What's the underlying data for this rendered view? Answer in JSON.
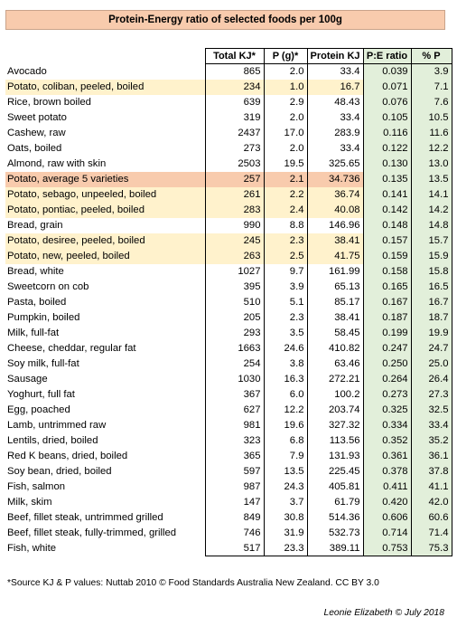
{
  "title": "Protein-Energy ratio of selected foods per 100g",
  "columns": [
    "Total KJ*",
    "P (g)*",
    "Protein KJ",
    "P:E ratio",
    "% P"
  ],
  "rows": [
    {
      "name": "Avocado",
      "kj": "865",
      "p": "2.0",
      "pkj": "33.4",
      "ratio": "0.039",
      "pct": "3.9",
      "hl": ""
    },
    {
      "name": "Potato, coliban, peeled, boiled",
      "kj": "234",
      "p": "1.0",
      "pkj": "16.7",
      "ratio": "0.071",
      "pct": "7.1",
      "hl": "light"
    },
    {
      "name": "Rice, brown boiled",
      "kj": "639",
      "p": "2.9",
      "pkj": "48.43",
      "ratio": "0.076",
      "pct": "7.6",
      "hl": ""
    },
    {
      "name": "Sweet potato",
      "kj": "319",
      "p": "2.0",
      "pkj": "33.4",
      "ratio": "0.105",
      "pct": "10.5",
      "hl": ""
    },
    {
      "name": "Cashew, raw",
      "kj": "2437",
      "p": "17.0",
      "pkj": "283.9",
      "ratio": "0.116",
      "pct": "11.6",
      "hl": ""
    },
    {
      "name": "Oats, boiled",
      "kj": "273",
      "p": "2.0",
      "pkj": "33.4",
      "ratio": "0.122",
      "pct": "12.2",
      "hl": ""
    },
    {
      "name": "Almond, raw with skin",
      "kj": "2503",
      "p": "19.5",
      "pkj": "325.65",
      "ratio": "0.130",
      "pct": "13.0",
      "hl": ""
    },
    {
      "name": "Potato, average 5 varieties",
      "kj": "257",
      "p": "2.1",
      "pkj": "34.736",
      "ratio": "0.135",
      "pct": "13.5",
      "hl": "avg"
    },
    {
      "name": "Potato, sebago, unpeeled, boiled",
      "kj": "261",
      "p": "2.2",
      "pkj": "36.74",
      "ratio": "0.141",
      "pct": "14.1",
      "hl": "light"
    },
    {
      "name": "Potato, pontiac, peeled, boiled",
      "kj": "283",
      "p": "2.4",
      "pkj": "40.08",
      "ratio": "0.142",
      "pct": "14.2",
      "hl": "light"
    },
    {
      "name": "Bread, grain",
      "kj": "990",
      "p": "8.8",
      "pkj": "146.96",
      "ratio": "0.148",
      "pct": "14.8",
      "hl": ""
    },
    {
      "name": "Potato, desiree, peeled, boiled",
      "kj": "245",
      "p": "2.3",
      "pkj": "38.41",
      "ratio": "0.157",
      "pct": "15.7",
      "hl": "light"
    },
    {
      "name": "Potato, new, peeled, boiled",
      "kj": "263",
      "p": "2.5",
      "pkj": "41.75",
      "ratio": "0.159",
      "pct": "15.9",
      "hl": "light"
    },
    {
      "name": "Bread, white",
      "kj": "1027",
      "p": "9.7",
      "pkj": "161.99",
      "ratio": "0.158",
      "pct": "15.8",
      "hl": ""
    },
    {
      "name": "Sweetcorn on cob",
      "kj": "395",
      "p": "3.9",
      "pkj": "65.13",
      "ratio": "0.165",
      "pct": "16.5",
      "hl": ""
    },
    {
      "name": "Pasta, boiled",
      "kj": "510",
      "p": "5.1",
      "pkj": "85.17",
      "ratio": "0.167",
      "pct": "16.7",
      "hl": ""
    },
    {
      "name": "Pumpkin, boiled",
      "kj": "205",
      "p": "2.3",
      "pkj": "38.41",
      "ratio": "0.187",
      "pct": "18.7",
      "hl": ""
    },
    {
      "name": "Milk, full-fat",
      "kj": "293",
      "p": "3.5",
      "pkj": "58.45",
      "ratio": "0.199",
      "pct": "19.9",
      "hl": ""
    },
    {
      "name": "Cheese, cheddar, regular fat",
      "kj": "1663",
      "p": "24.6",
      "pkj": "410.82",
      "ratio": "0.247",
      "pct": "24.7",
      "hl": ""
    },
    {
      "name": "Soy milk, full-fat",
      "kj": "254",
      "p": "3.8",
      "pkj": "63.46",
      "ratio": "0.250",
      "pct": "25.0",
      "hl": ""
    },
    {
      "name": "Sausage",
      "kj": "1030",
      "p": "16.3",
      "pkj": "272.21",
      "ratio": "0.264",
      "pct": "26.4",
      "hl": ""
    },
    {
      "name": "Yoghurt, full fat",
      "kj": "367",
      "p": "6.0",
      "pkj": "100.2",
      "ratio": "0.273",
      "pct": "27.3",
      "hl": ""
    },
    {
      "name": "Egg, poached",
      "kj": "627",
      "p": "12.2",
      "pkj": "203.74",
      "ratio": "0.325",
      "pct": "32.5",
      "hl": ""
    },
    {
      "name": "Lamb, untrimmed raw",
      "kj": "981",
      "p": "19.6",
      "pkj": "327.32",
      "ratio": "0.334",
      "pct": "33.4",
      "hl": ""
    },
    {
      "name": "Lentils, dried, boiled",
      "kj": "323",
      "p": "6.8",
      "pkj": "113.56",
      "ratio": "0.352",
      "pct": "35.2",
      "hl": ""
    },
    {
      "name": "Red K beans, dried, boiled",
      "kj": "365",
      "p": "7.9",
      "pkj": "131.93",
      "ratio": "0.361",
      "pct": "36.1",
      "hl": ""
    },
    {
      "name": "Soy bean, dried, boiled",
      "kj": "597",
      "p": "13.5",
      "pkj": "225.45",
      "ratio": "0.378",
      "pct": "37.8",
      "hl": ""
    },
    {
      "name": "Fish, salmon",
      "kj": "987",
      "p": "24.3",
      "pkj": "405.81",
      "ratio": "0.411",
      "pct": "41.1",
      "hl": ""
    },
    {
      "name": "Milk, skim",
      "kj": "147",
      "p": "3.7",
      "pkj": "61.79",
      "ratio": "0.420",
      "pct": "42.0",
      "hl": ""
    },
    {
      "name": "Beef, fillet steak, untrimmed grilled",
      "kj": "849",
      "p": "30.8",
      "pkj": "514.36",
      "ratio": "0.606",
      "pct": "60.6",
      "hl": ""
    },
    {
      "name": "Beef, fillet steak, fully-trimmed, grilled",
      "kj": "746",
      "p": "31.9",
      "pkj": "532.73",
      "ratio": "0.714",
      "pct": "71.4",
      "hl": ""
    },
    {
      "name": "Fish, white",
      "kj": "517",
      "p": "23.3",
      "pkj": "389.11",
      "ratio": "0.753",
      "pct": "75.3",
      "hl": ""
    }
  ],
  "source": "*Source KJ & P values: Nuttab 2010 © Food Standards Australia New Zealand. CC BY 3.0",
  "credit": "Leonie Elizabeth © July 2018",
  "colors": {
    "title_bg": "#f8cbad",
    "highlight_light": "#fff2cc",
    "highlight_avg": "#f8cbad",
    "ratio_col_bg": "#e2efda"
  }
}
